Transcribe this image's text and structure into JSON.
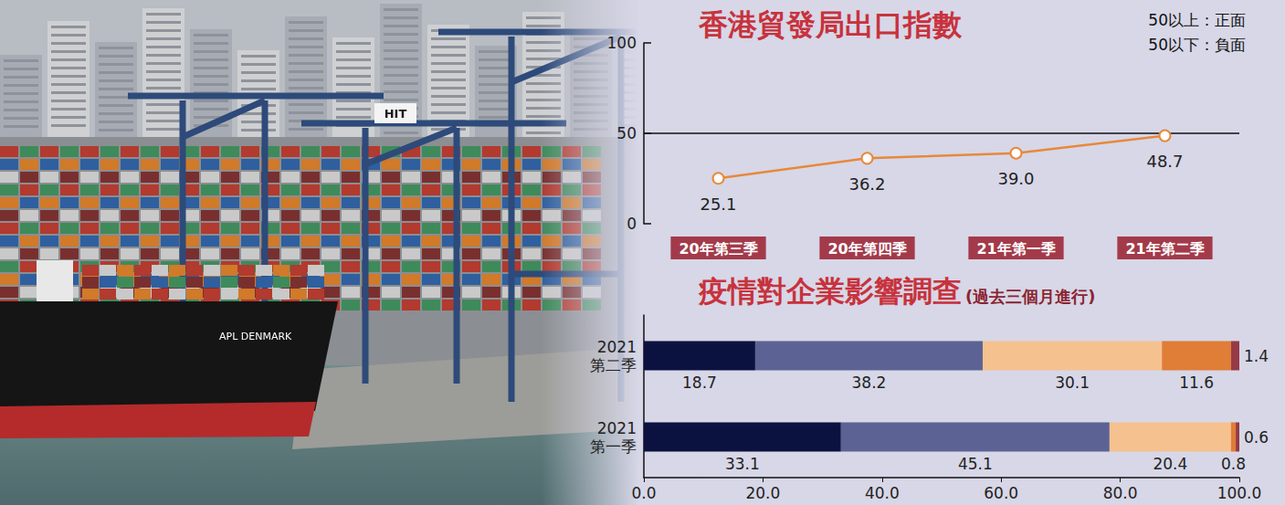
{
  "chart_data": [
    {
      "type": "line",
      "title": "香港貿發局出口指數",
      "annotations": [
        "50以上：正面",
        "50以下：負面"
      ],
      "categories": [
        "20年第三季",
        "20年第四季",
        "21年第一季",
        "21年第二季"
      ],
      "values": [
        25.1,
        36.2,
        39.0,
        48.7
      ],
      "value_labels": [
        "25.1",
        "36.2",
        "39.0",
        "48.7"
      ],
      "color": "#e8883a",
      "marker": "circle",
      "ylim": [
        0,
        100
      ],
      "yticks": [
        0,
        50,
        100
      ],
      "grid": true,
      "data_labels": true
    },
    {
      "type": "bar",
      "orientation": "horizontal",
      "stacked": true,
      "title": "疫情對企業影響調查",
      "subtitle": "(過去三個月進行)",
      "categories": [
        "2021\n第二季",
        "2021\n第一季"
      ],
      "series": [
        {
          "color": "#0c1240",
          "values": [
            18.7,
            33.1
          ]
        },
        {
          "color": "#5c6394",
          "values": [
            38.2,
            45.1
          ]
        },
        {
          "color": "#f5c18f",
          "values": [
            30.1,
            20.4
          ]
        },
        {
          "color": "#e07d36",
          "values": [
            11.6,
            0.8
          ]
        },
        {
          "color": "#963a45",
          "values": [
            1.4,
            0.6
          ]
        }
      ],
      "xlim": [
        0,
        100
      ],
      "xticks": [
        {
          "value": 0,
          "label": "0.0"
        },
        {
          "value": 20,
          "label": "20.0"
        },
        {
          "value": 40,
          "label": "40.0"
        },
        {
          "value": 60,
          "label": "60.0"
        },
        {
          "value": 80,
          "label": "80.0"
        },
        {
          "value": 100,
          "label": "100.0"
        }
      ],
      "grid": false,
      "data_labels": true
    }
  ],
  "photo": {
    "texts": [
      "APL DENMARK",
      "HIT"
    ]
  }
}
